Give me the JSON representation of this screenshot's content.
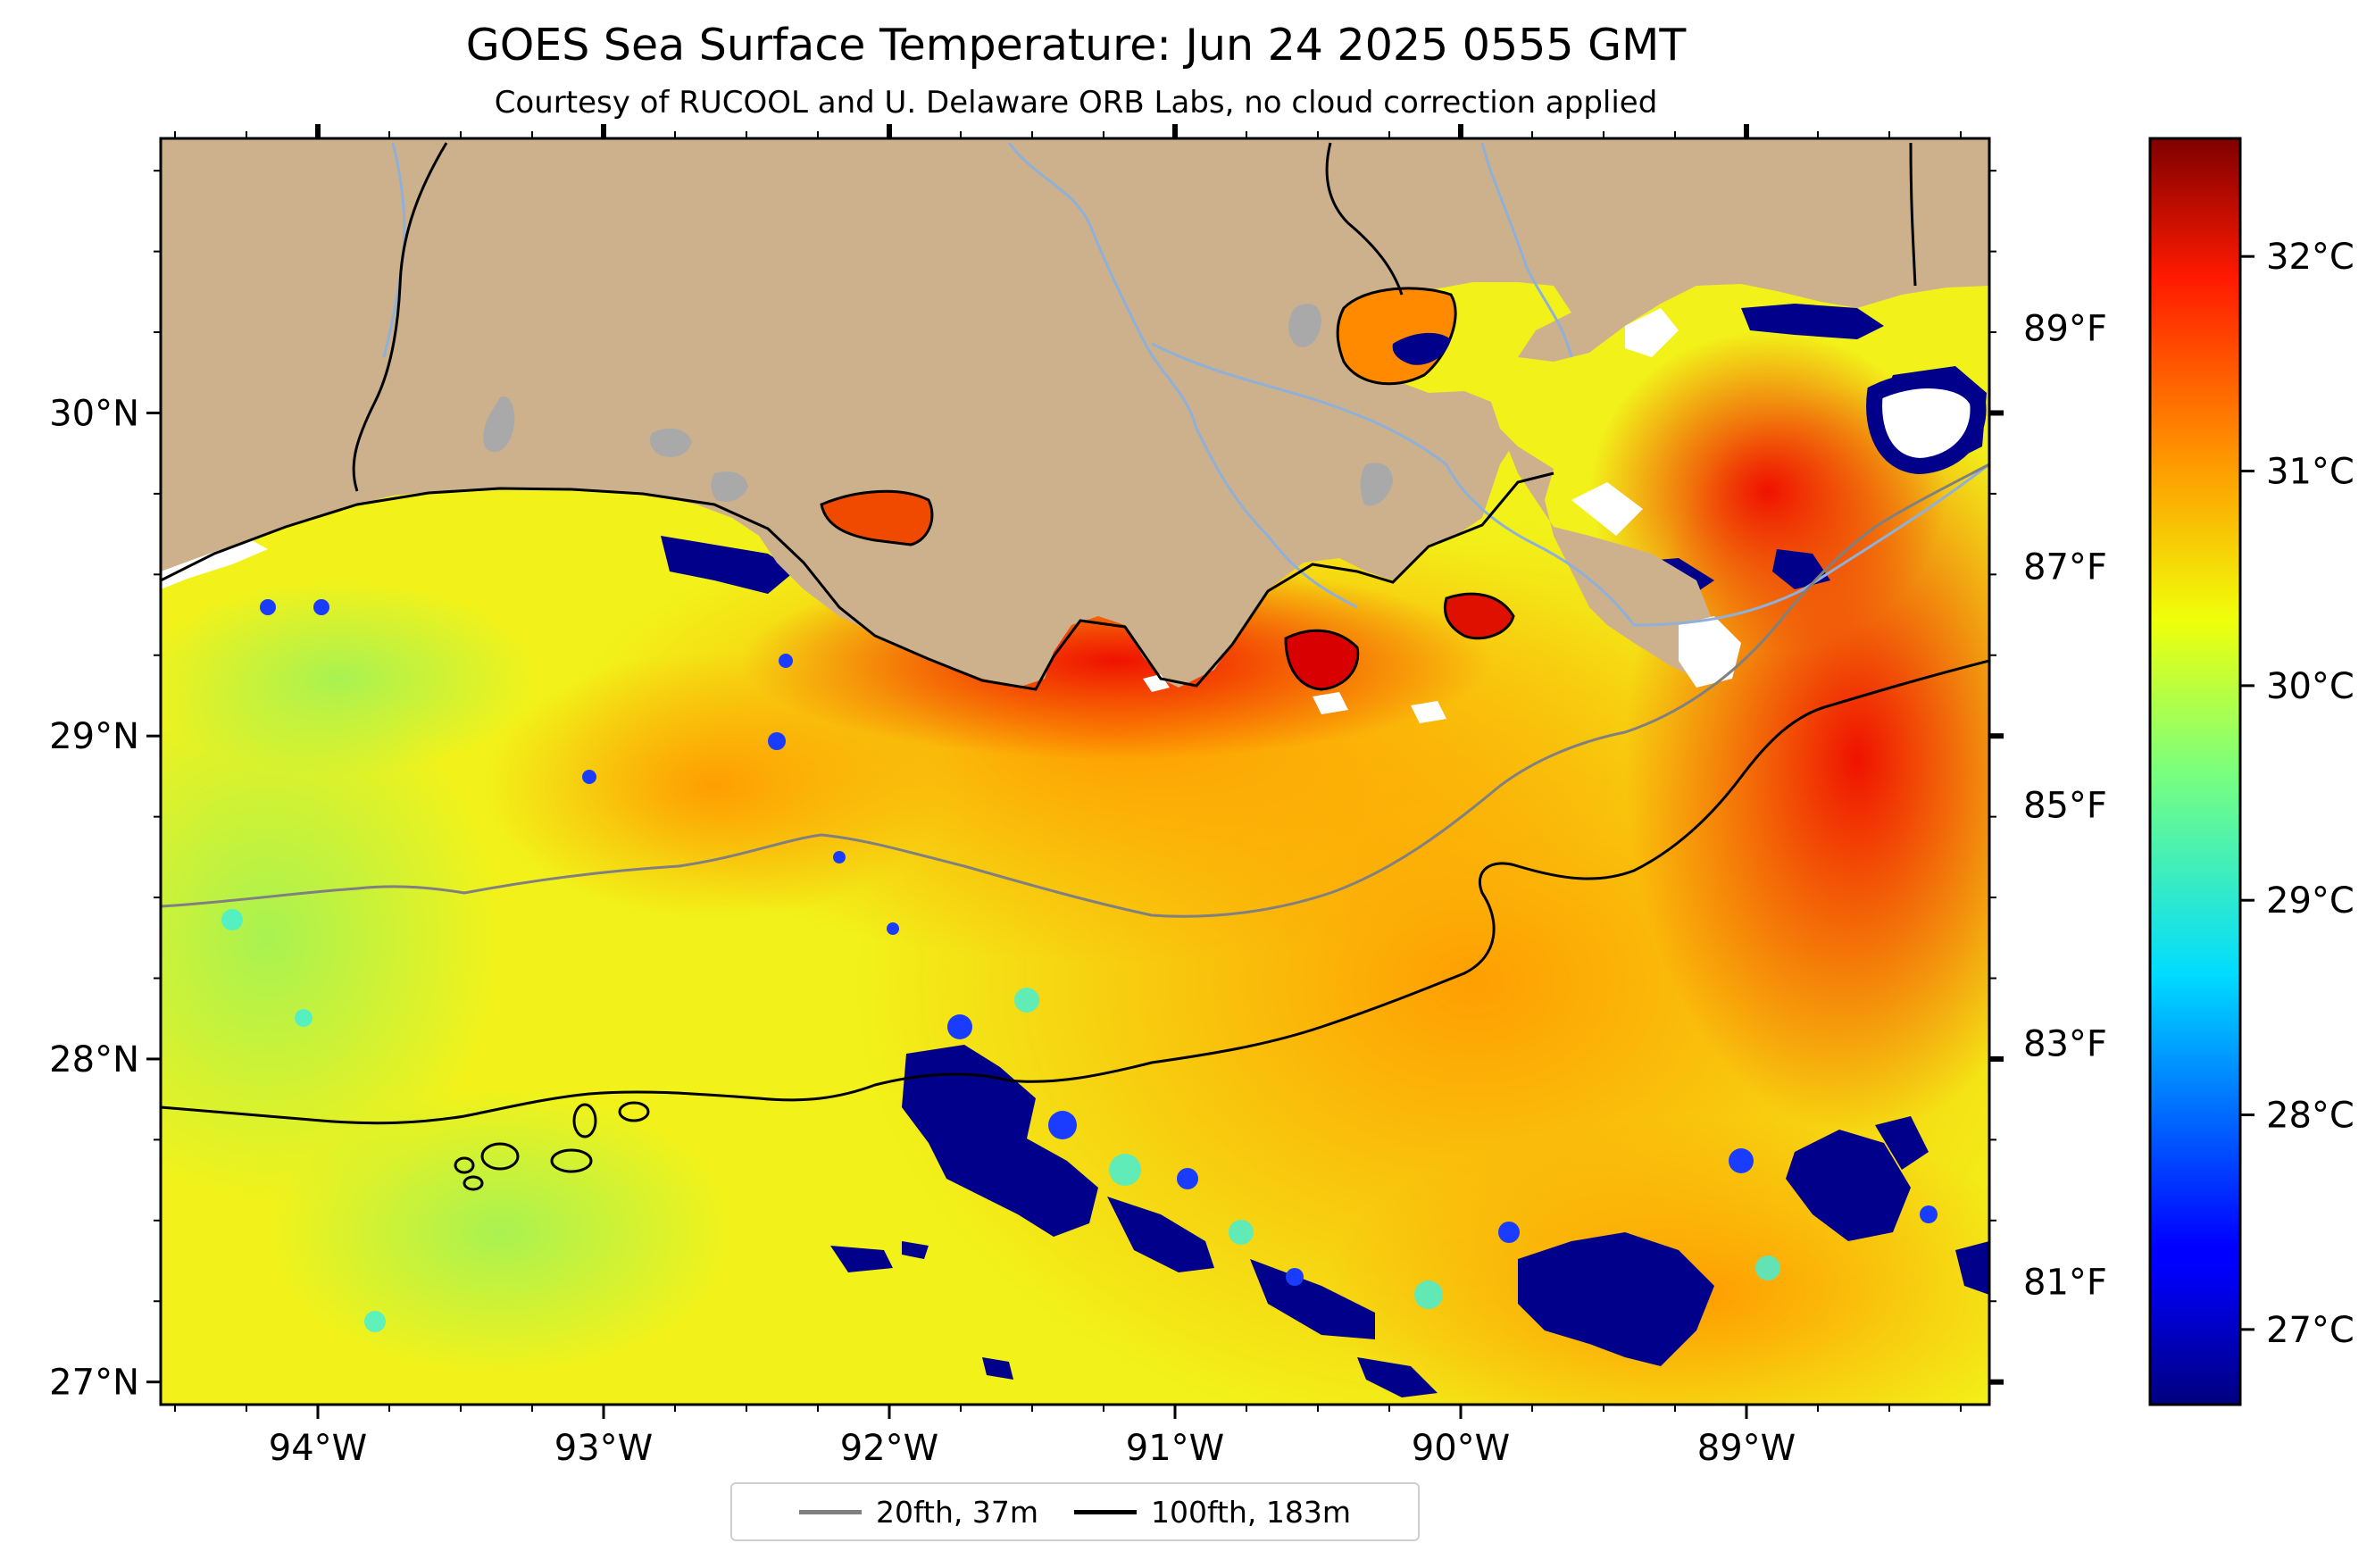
{
  "title": "GOES Sea Surface Temperature: Jun 24 2025 0555 GMT",
  "subtitle": "Courtesy of RUCOOL and U. Delaware ORB Labs, no cloud correction applied",
  "map": {
    "extent": {
      "lon_min": -94.55,
      "lon_max": -88.15,
      "lat_min": 26.93,
      "lat_max": 30.85
    },
    "lat_ticks": [
      {
        "value": 30,
        "label": "30°N"
      },
      {
        "value": 29,
        "label": "29°N"
      },
      {
        "value": 28,
        "label": "28°N"
      },
      {
        "value": 27,
        "label": "27°N"
      }
    ],
    "lon_ticks": [
      {
        "value": -94,
        "label": "94°W"
      },
      {
        "value": -93,
        "label": "93°W"
      },
      {
        "value": -92,
        "label": "92°W"
      },
      {
        "value": -91,
        "label": "91°W"
      },
      {
        "value": -90,
        "label": "90°W"
      },
      {
        "value": -89,
        "label": "89°W"
      }
    ],
    "fahrenheit_ticks": [
      {
        "value": 89,
        "label": "89°F"
      },
      {
        "value": 87,
        "label": "87°F"
      },
      {
        "value": 85,
        "label": "85°F"
      },
      {
        "value": 83,
        "label": "83°F"
      },
      {
        "value": 81,
        "label": "81°F"
      }
    ],
    "colors": {
      "land": "#cdb18c",
      "lakes": "#a9a9a9",
      "rivers": "#8fb0d8",
      "coast": "#000000"
    }
  },
  "colorbar": {
    "colormap": "jet",
    "range_c": [
      26.65,
      32.55
    ],
    "ticks": [
      {
        "value": 32,
        "label": "32°C"
      },
      {
        "value": 31,
        "label": "31°C"
      },
      {
        "value": 30,
        "label": "30°C"
      },
      {
        "value": 29,
        "label": "29°C"
      },
      {
        "value": 28,
        "label": "28°C"
      },
      {
        "value": 27,
        "label": "27°C"
      }
    ]
  },
  "legend": {
    "placement": "bottom-center",
    "items": [
      {
        "label": "20fth, 37m",
        "color": "#808080"
      },
      {
        "label": "100fth, 183m",
        "color": "#000000"
      }
    ]
  }
}
